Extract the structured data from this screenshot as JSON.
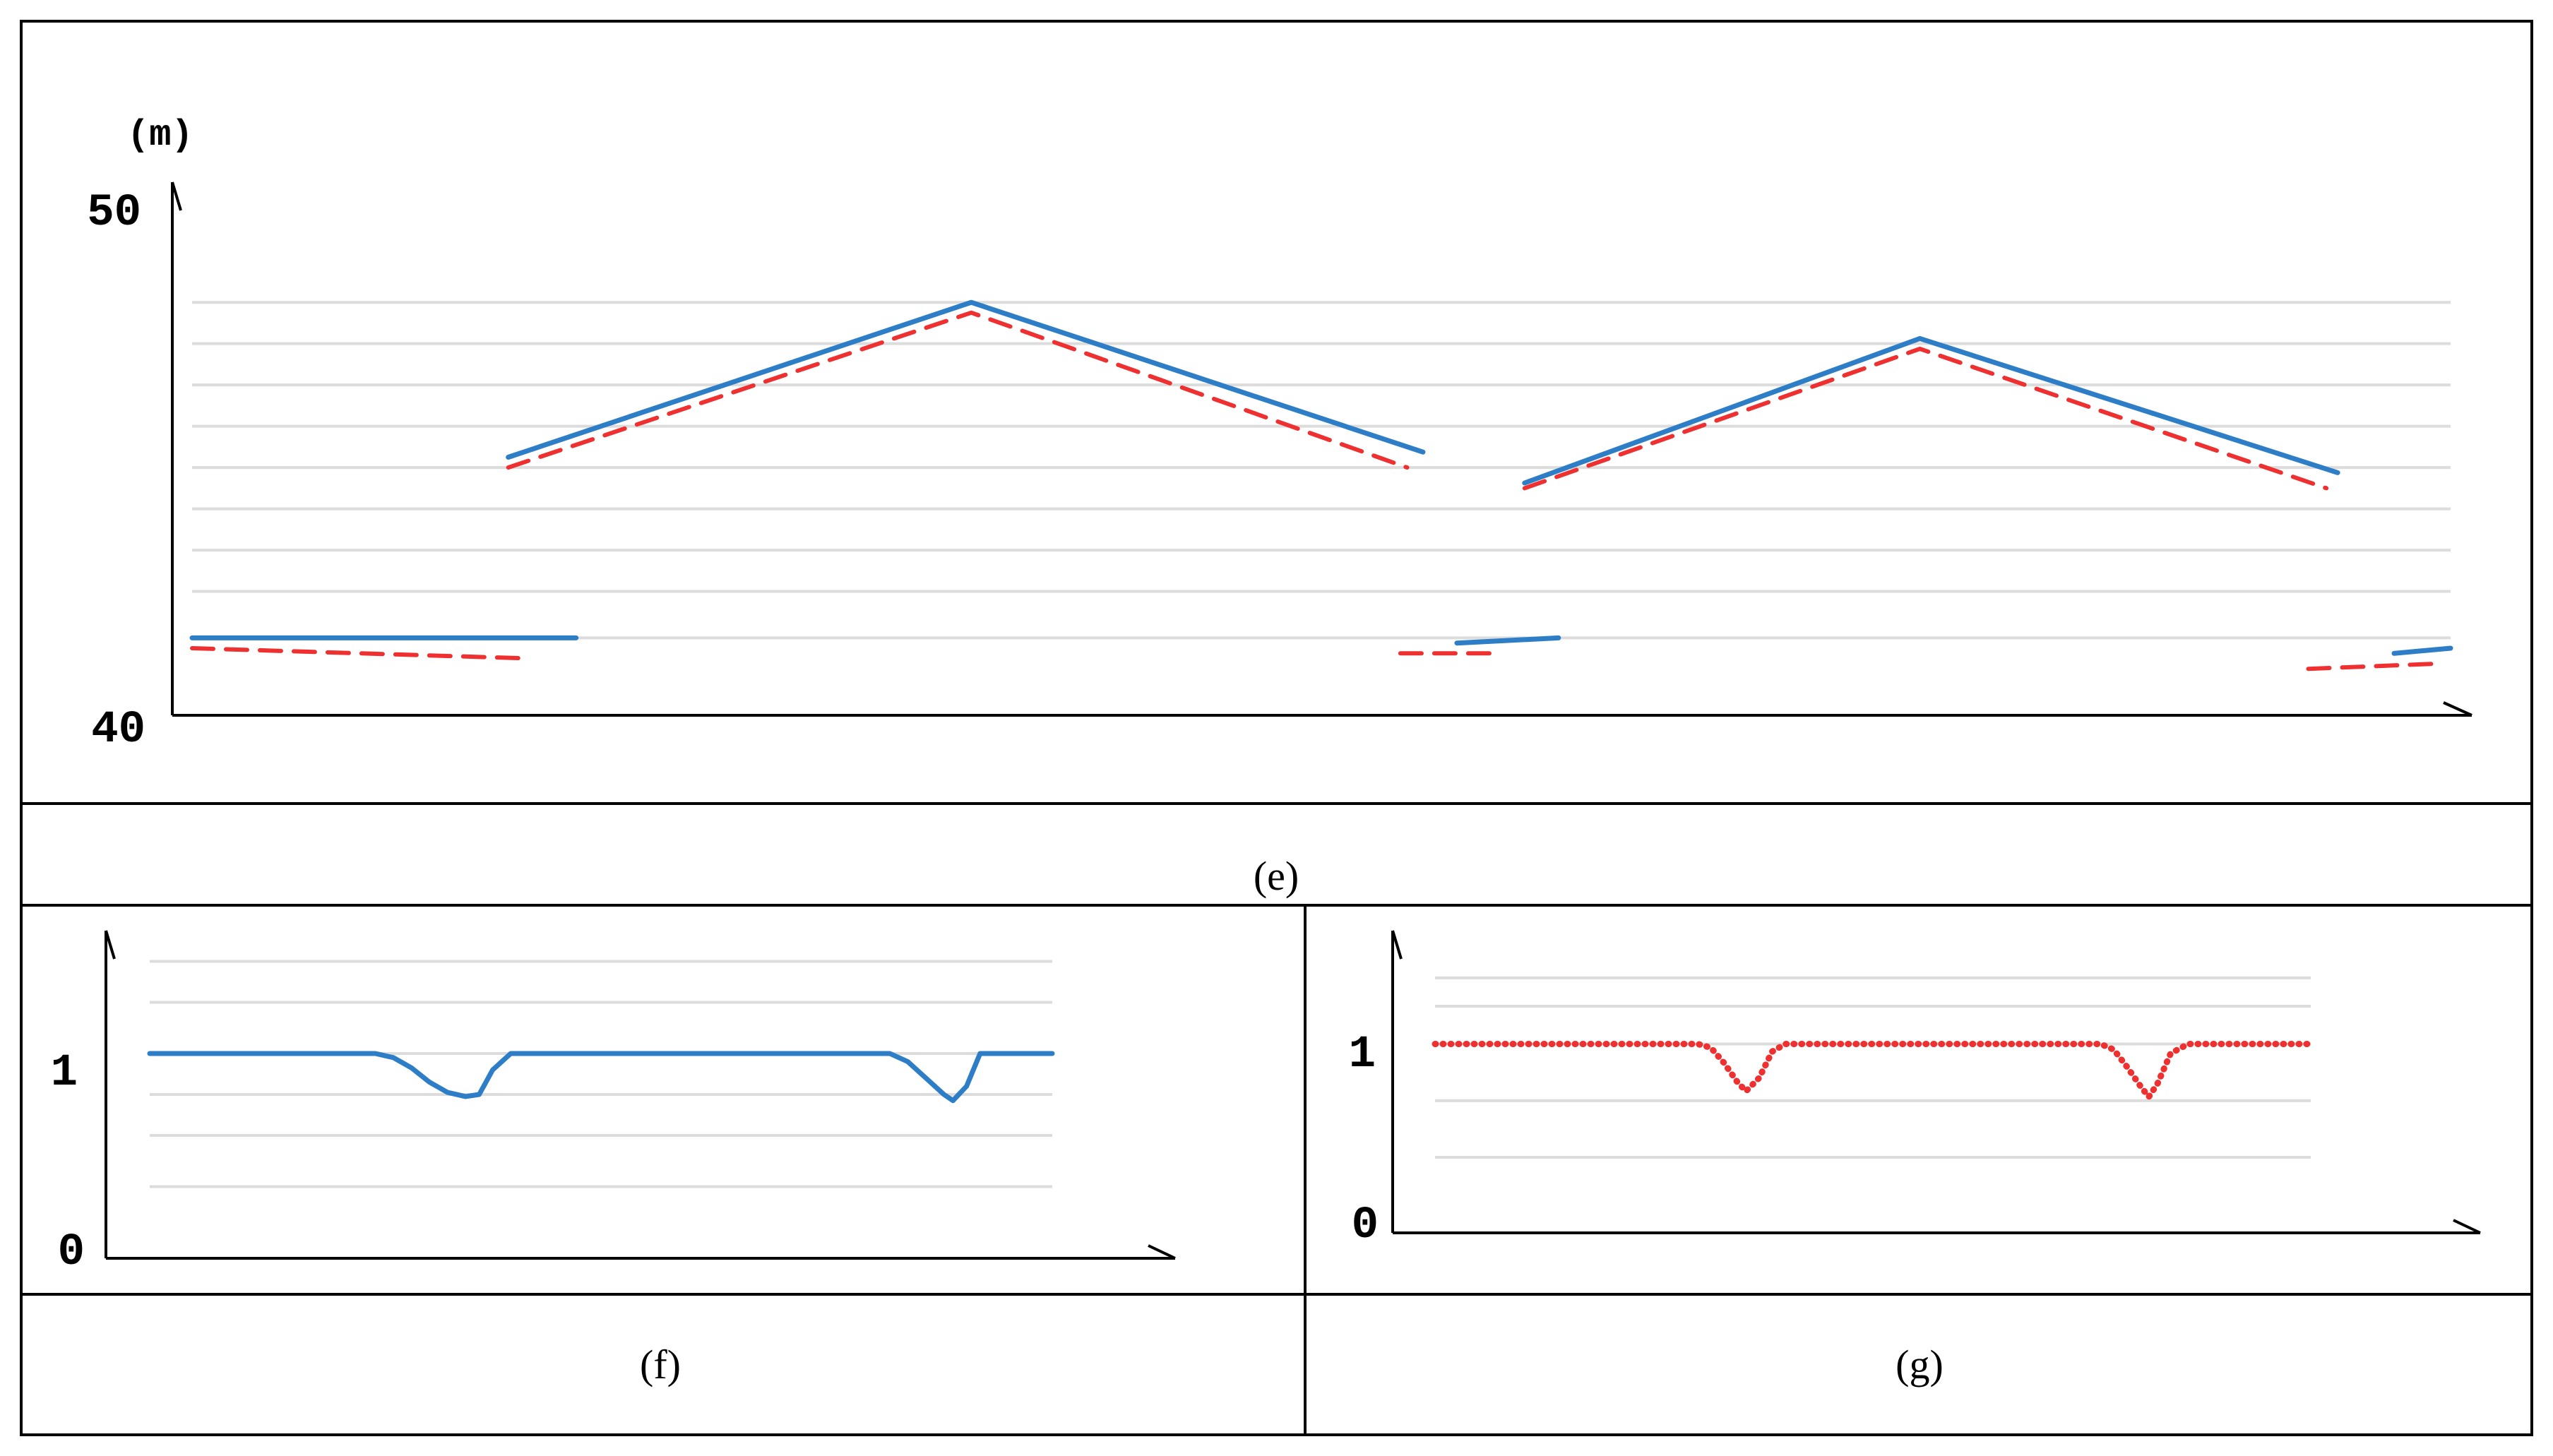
{
  "captions": {
    "e": "(e)",
    "f": "(f)",
    "g": "(g)"
  },
  "colors": {
    "series_blue": "#2e7ec7",
    "series_red": "#ee3030",
    "grid": "#dcdcdc"
  },
  "chart_data": [
    {
      "id": "e",
      "type": "line",
      "unit_label": "(m)",
      "ylim": [
        40,
        50
      ],
      "yticks": [
        "50",
        "40"
      ],
      "xlim": [
        0,
        100
      ],
      "grid": true,
      "gridlines_y": [
        48.0,
        47.2,
        46.4,
        45.6,
        44.8,
        44.0,
        43.2,
        42.4,
        41.5
      ],
      "series": [
        {
          "color": "blue",
          "style": "solid",
          "segments": [
            {
              "x": [
                0,
                17
              ],
              "y": [
                41.5,
                41.5
              ]
            },
            {
              "x": [
                14,
                34.5,
                54.5
              ],
              "y": [
                45.0,
                48.0,
                45.1
              ]
            },
            {
              "x": [
                56,
                60.5
              ],
              "y": [
                41.4,
                41.5
              ]
            },
            {
              "x": [
                59,
                76.5,
                95
              ],
              "y": [
                44.5,
                47.3,
                44.7
              ]
            },
            {
              "x": [
                97.5,
                100
              ],
              "y": [
                41.2,
                41.3
              ]
            }
          ]
        },
        {
          "color": "red",
          "style": "dashed",
          "segments": [
            {
              "x": [
                0,
                15
              ],
              "y": [
                41.3,
                41.1
              ]
            },
            {
              "x": [
                14,
                34.5,
                53.8
              ],
              "y": [
                44.8,
                47.8,
                44.8
              ]
            },
            {
              "x": [
                53.5,
                57.5
              ],
              "y": [
                41.2,
                41.2
              ]
            },
            {
              "x": [
                59,
                76.5,
                94.5
              ],
              "y": [
                44.4,
                47.1,
                44.4
              ]
            },
            {
              "x": [
                93.7,
                99.4
              ],
              "y": [
                40.9,
                41.0
              ]
            }
          ]
        }
      ]
    },
    {
      "id": "f",
      "type": "line",
      "ylim": [
        0,
        1.6
      ],
      "yticks": [
        "1",
        "0"
      ],
      "xlim": [
        0,
        100
      ],
      "grid": true,
      "gridlines_y": [
        1.45,
        1.25,
        1.0,
        0.8,
        0.6,
        0.35
      ],
      "series": [
        {
          "color": "blue",
          "style": "solid",
          "x": [
            0,
            25,
            27,
            29,
            31,
            33,
            35,
            36.5,
            38,
            40,
            50,
            60,
            70,
            82,
            84,
            86,
            88,
            89,
            90.5,
            92,
            100
          ],
          "y": [
            1.0,
            1.0,
            0.98,
            0.93,
            0.86,
            0.81,
            0.79,
            0.8,
            0.92,
            1.0,
            1.0,
            1.0,
            1.0,
            1.0,
            0.96,
            0.88,
            0.8,
            0.77,
            0.84,
            1.0,
            1.0
          ]
        }
      ]
    },
    {
      "id": "g",
      "type": "line",
      "ylim": [
        0,
        1.6
      ],
      "yticks": [
        "1",
        "0"
      ],
      "xlim": [
        0,
        100
      ],
      "grid": true,
      "gridlines_y": [
        1.35,
        1.2,
        1.0,
        0.7,
        0.4
      ],
      "series": [
        {
          "color": "red",
          "style": "dotted",
          "x": [
            0,
            30,
            31.5,
            33,
            34.5,
            35.5,
            37,
            38.5,
            40,
            50,
            60,
            76,
            77.5,
            79,
            80.5,
            81.5,
            82.5,
            84,
            86,
            100
          ],
          "y": [
            1.0,
            1.0,
            0.98,
            0.9,
            0.8,
            0.75,
            0.82,
            0.96,
            1.0,
            1.0,
            1.0,
            1.0,
            0.97,
            0.88,
            0.78,
            0.72,
            0.79,
            0.95,
            1.0,
            1.0
          ]
        }
      ]
    }
  ]
}
